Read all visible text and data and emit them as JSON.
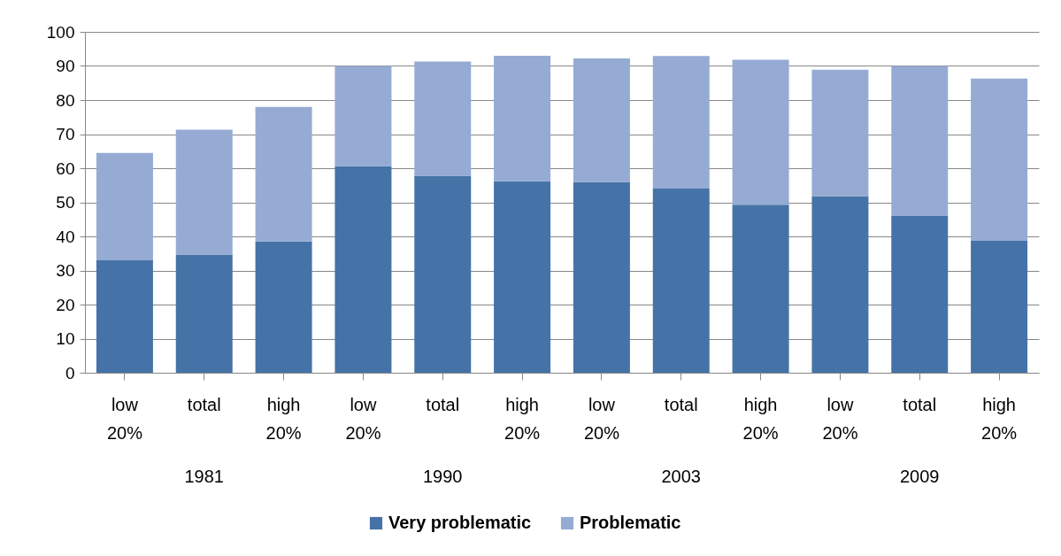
{
  "chart_data": {
    "type": "bar",
    "stacked": true,
    "categories": [
      "low 20%",
      "total",
      "high 20%",
      "low 20%",
      "total",
      "high 20%",
      "low 20%",
      "total",
      "high 20%",
      "low 20%",
      "total",
      "high 20%"
    ],
    "series": [
      {
        "name": "Very problematic",
        "color": "#4573a7",
        "values": [
          33,
          34.7,
          38.5,
          60.6,
          57.8,
          56.2,
          56,
          54,
          49.3,
          51.8,
          46,
          38.7
        ]
      },
      {
        "name": "Problematic",
        "color": "#95abd4",
        "values": [
          31.5,
          36.6,
          39.5,
          29.4,
          33.5,
          36.8,
          36.2,
          38.9,
          42.5,
          37.1,
          44,
          47.6
        ]
      }
    ],
    "annotations": [
      "1981",
      "1990",
      "2003",
      "2009"
    ],
    "ylim": [
      0,
      100
    ],
    "yticks": [
      0,
      10,
      20,
      30,
      40,
      50,
      60,
      70,
      80,
      90,
      100
    ],
    "grid": "y",
    "legend": "bottom"
  }
}
